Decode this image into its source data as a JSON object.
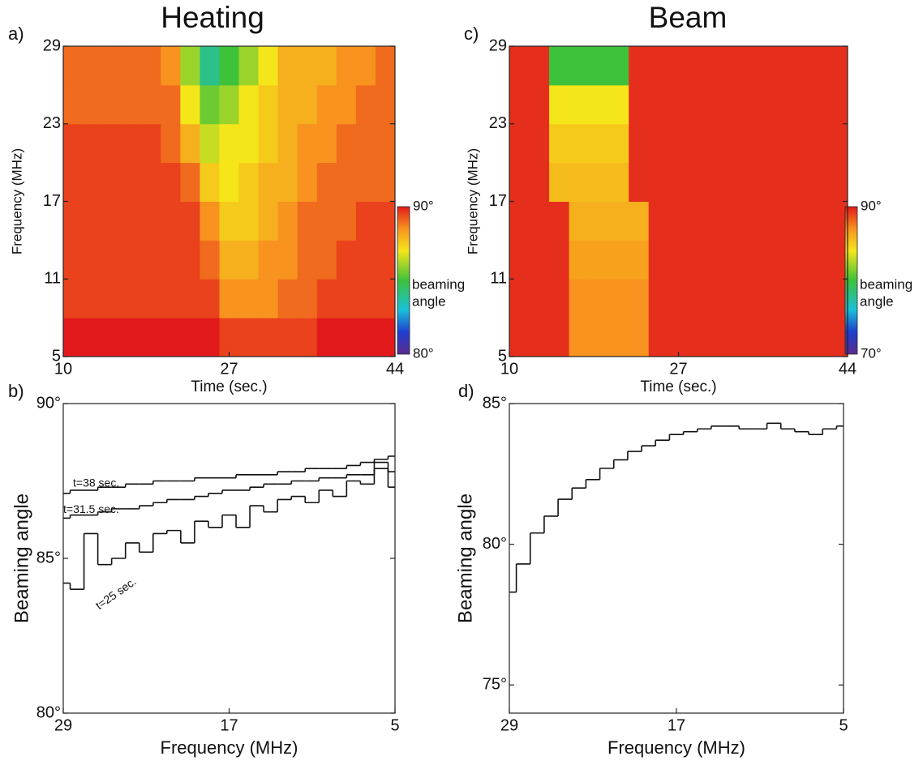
{
  "chart_data": [
    {
      "type": "heatmap",
      "panel_label": "a)",
      "title": "Heating",
      "xlabel": "Time (sec.)",
      "ylabel": "Frequency (MHz)",
      "x": [
        10,
        12,
        14,
        16,
        18,
        20,
        22,
        24,
        26,
        28,
        30,
        32,
        34,
        36,
        38,
        40,
        42,
        44
      ],
      "y": [
        5,
        8,
        11,
        14,
        17,
        20,
        23,
        26,
        29
      ],
      "z": [
        [
          90,
          90,
          90,
          90,
          90,
          90,
          90,
          90,
          89.5,
          89.5,
          89.5,
          89.5,
          89.5,
          90,
          90,
          90,
          90
        ],
        [
          89.5,
          89.5,
          89.5,
          89.5,
          89.5,
          89.5,
          89.5,
          89.5,
          88.5,
          88.5,
          88.5,
          89,
          89,
          89.5,
          89.5,
          89.5,
          89.5
        ],
        [
          89.5,
          89.5,
          89.5,
          89.5,
          89.5,
          89.5,
          89.5,
          89,
          88,
          88,
          88.5,
          88.5,
          89,
          89,
          89.5,
          89.5,
          89.5
        ],
        [
          89.5,
          89.5,
          89.5,
          89.5,
          89.5,
          89.5,
          89.5,
          88.5,
          87.5,
          87.5,
          88,
          88.5,
          89,
          89,
          89,
          89.5,
          89.5
        ],
        [
          89.5,
          89.5,
          89.5,
          89.5,
          89.5,
          89.5,
          89,
          87.5,
          87,
          87.5,
          88,
          88,
          88.5,
          89,
          89,
          89,
          89
        ],
        [
          89.5,
          89.5,
          89.5,
          89.5,
          89.5,
          89,
          88,
          86.5,
          87,
          87,
          87.5,
          88,
          88.5,
          88.5,
          89,
          89,
          89
        ],
        [
          89,
          89,
          89,
          89,
          89,
          89,
          87,
          85.5,
          86,
          87,
          87.5,
          88,
          88,
          88.5,
          88.5,
          89,
          89
        ],
        [
          89,
          89,
          89,
          89,
          89,
          88.5,
          86,
          84,
          85,
          86,
          87,
          88,
          88,
          88,
          88.5,
          88.5,
          89
        ]
      ],
      "xlim": [
        10,
        44
      ],
      "ylim": [
        5,
        29
      ],
      "xticks": [
        10,
        27,
        44
      ],
      "yticks": [
        5,
        11,
        17,
        23,
        29
      ],
      "zlim": [
        80,
        90
      ],
      "colorbar_ticks": [
        {
          "value": 90,
          "label": "90°"
        },
        {
          "value": 80,
          "label": "80°"
        }
      ],
      "colorbar_label": [
        "beaming",
        "angle"
      ]
    },
    {
      "type": "step",
      "panel_label": "b)",
      "xlabel": "Frequency (MHz)",
      "ylabel": "Beaming angle",
      "x": [
        29,
        28,
        27,
        26,
        25,
        24,
        23,
        22,
        21,
        20,
        19,
        18,
        17,
        16,
        15,
        14,
        13,
        12,
        11,
        10,
        9,
        8,
        7,
        6,
        5
      ],
      "series": [
        {
          "name": "t=38 sec.",
          "color": "#111111",
          "values": [
            87.1,
            87.2,
            87.2,
            87.3,
            87.3,
            87.4,
            87.4,
            87.5,
            87.5,
            87.5,
            87.6,
            87.6,
            87.6,
            87.7,
            87.7,
            87.7,
            87.8,
            87.8,
            87.9,
            87.9,
            87.9,
            88.0,
            88.1,
            88.2,
            88.3
          ]
        },
        {
          "name": "t=31.5 sec.",
          "color": "#111111",
          "values": [
            86.3,
            86.4,
            86.4,
            86.5,
            86.6,
            86.6,
            86.7,
            86.8,
            86.9,
            86.9,
            87.0,
            87.1,
            87.2,
            87.2,
            87.3,
            87.4,
            87.4,
            87.5,
            87.5,
            87.6,
            87.6,
            87.7,
            87.7,
            87.9,
            87.8
          ]
        },
        {
          "name": "t=25 sec.",
          "color": "#111111",
          "values": [
            84.2,
            84.0,
            85.8,
            84.8,
            85.0,
            85.5,
            85.2,
            85.8,
            85.9,
            85.5,
            86.2,
            86.0,
            86.4,
            86.0,
            86.7,
            86.5,
            86.9,
            87.0,
            86.8,
            87.2,
            87.0,
            87.5,
            87.4,
            88.1,
            87.3
          ]
        }
      ],
      "xlim": [
        29,
        5
      ],
      "ylim": [
        80,
        90
      ],
      "xticks": [
        29,
        17,
        5
      ],
      "yticks": [
        {
          "value": 90,
          "label": "90°"
        },
        {
          "value": 85,
          "label": "85°"
        },
        {
          "value": 80,
          "label": "80°"
        }
      ]
    },
    {
      "type": "heatmap",
      "panel_label": "c)",
      "title": "Beam",
      "xlabel": "Time (sec.)",
      "ylabel": "Frequency (MHz)",
      "x": [
        10,
        12,
        14,
        16,
        18,
        20,
        22,
        24,
        26,
        28,
        30,
        32,
        34,
        36,
        38,
        40,
        42,
        44
      ],
      "y": [
        5,
        8,
        11,
        14,
        17,
        20,
        23,
        26,
        29
      ],
      "z": [
        [
          89.5,
          89.5,
          89.5,
          87,
          87,
          87,
          87,
          89.5,
          89.5,
          89.5,
          89.5,
          89.5,
          89.5,
          89.5,
          89.5,
          89.5,
          89.5
        ],
        [
          89.5,
          89.5,
          89.5,
          87,
          87,
          87,
          87,
          89.5,
          89.5,
          89.5,
          89.5,
          89.5,
          89.5,
          89.5,
          89.5,
          89.5,
          89.5
        ],
        [
          89.5,
          89.5,
          89.5,
          86.5,
          86.5,
          86.5,
          86.5,
          89.5,
          89.5,
          89.5,
          89.5,
          89.5,
          89.5,
          89.5,
          89.5,
          89.5,
          89.5
        ],
        [
          89.5,
          89.5,
          89.5,
          86,
          86,
          86,
          86,
          89.5,
          89.5,
          89.5,
          89.5,
          89.5,
          89.5,
          89.5,
          89.5,
          89.5,
          89.5
        ],
        [
          89.5,
          89.5,
          85.5,
          85.5,
          85.5,
          85.5,
          89.5,
          89.5,
          89.5,
          89.5,
          89.5,
          89.5,
          89.5,
          89.5,
          89.5,
          89.5,
          89.5
        ],
        [
          89.5,
          89.5,
          85,
          85,
          85,
          85,
          89.5,
          89.5,
          89.5,
          89.5,
          89.5,
          89.5,
          89.5,
          89.5,
          89.5,
          89.5,
          89.5
        ],
        [
          89.5,
          89.5,
          84,
          84,
          84,
          84,
          89.5,
          89.5,
          89.5,
          89.5,
          89.5,
          89.5,
          89.5,
          89.5,
          89.5,
          89.5,
          89.5
        ],
        [
          89.5,
          89.5,
          80,
          80,
          80,
          80,
          89.5,
          89.5,
          89.5,
          89.5,
          89.5,
          89.5,
          89.5,
          89.5,
          89.5,
          89.5,
          89.5
        ]
      ],
      "xlim": [
        10,
        44
      ],
      "ylim": [
        5,
        29
      ],
      "xticks": [
        10,
        27,
        44
      ],
      "yticks": [
        5,
        11,
        17,
        23,
        29
      ],
      "zlim": [
        70,
        90
      ],
      "colorbar_ticks": [
        {
          "value": 90,
          "label": "90°"
        },
        {
          "value": 70,
          "label": "70°"
        }
      ],
      "colorbar_label": [
        "beaming",
        "angle"
      ]
    },
    {
      "type": "step",
      "panel_label": "d)",
      "xlabel": "Frequency (MHz)",
      "ylabel": "Beaming angle",
      "x": [
        29,
        28,
        27,
        26,
        25,
        24,
        23,
        22,
        21,
        20,
        19,
        18,
        17,
        16,
        15,
        14,
        13,
        12,
        11,
        10,
        9,
        8,
        7,
        6,
        5
      ],
      "series": [
        {
          "name": null,
          "color": "#111111",
          "values": [
            78.3,
            79.3,
            80.4,
            81.0,
            81.6,
            82.0,
            82.3,
            82.7,
            83.0,
            83.3,
            83.5,
            83.7,
            83.9,
            84.0,
            84.1,
            84.2,
            84.2,
            84.1,
            84.1,
            84.3,
            84.1,
            84.0,
            83.9,
            84.1,
            84.2
          ]
        }
      ],
      "xlim": [
        29,
        5
      ],
      "ylim": [
        74,
        85
      ],
      "xticks": [
        29,
        17,
        5
      ],
      "yticks": [
        {
          "value": 85,
          "label": "85°"
        },
        {
          "value": 80,
          "label": "80°"
        },
        {
          "value": 75,
          "label": "75°"
        }
      ]
    }
  ]
}
